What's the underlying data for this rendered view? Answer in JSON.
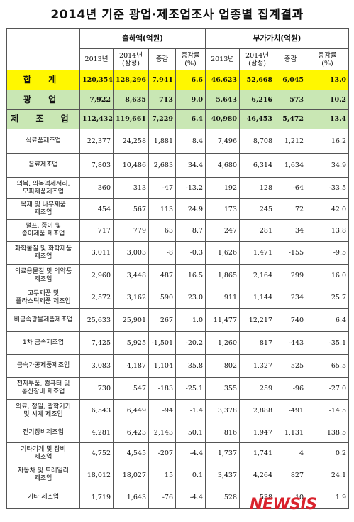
{
  "title": "2014년 기준 광업·제조업조사 업종별 집계결과",
  "headers": {
    "shipments_group": "출하액(억원)",
    "value_added_group": "부가가치(억원)",
    "y2013": "2013년",
    "y2014_line1": "2014년",
    "y2014_line2": "(잠정)",
    "change": "증감",
    "rate_line1": "증감률",
    "rate_line2": "(%)"
  },
  "summary_rows": [
    {
      "name": "합 계",
      "s2013": "120,354",
      "s2014": "128,296",
      "sdiff": "7,941",
      "srate": "6.6",
      "v2013": "46,623",
      "v2014": "52,668",
      "vdiff": "6,045",
      "vrate": "13.0"
    },
    {
      "name": "광 업",
      "s2013": "7,922",
      "s2014": "8,635",
      "sdiff": "713",
      "srate": "9.0",
      "v2013": "5,643",
      "v2014": "6,216",
      "vdiff": "573",
      "vrate": "10.2"
    },
    {
      "name": "제 조 업",
      "s2013": "112,432",
      "s2014": "119,661",
      "sdiff": "7,229",
      "srate": "6.4",
      "v2013": "40,980",
      "v2014": "46,453",
      "vdiff": "5,472",
      "vrate": "13.4"
    }
  ],
  "rows": [
    {
      "name1": "식료품제조업",
      "name2": "",
      "s2013": "22,377",
      "s2014": "24,258",
      "sdiff": "1,881",
      "srate": "8.4",
      "v2013": "7,496",
      "v2014": "8,708",
      "vdiff": "1,212",
      "vrate": "16.2"
    },
    {
      "name1": "음료제조업",
      "name2": "",
      "s2013": "7,803",
      "s2014": "10,486",
      "sdiff": "2,683",
      "srate": "34.4",
      "v2013": "4,680",
      "v2014": "6,314",
      "vdiff": "1,634",
      "vrate": "34.9"
    },
    {
      "name1": "의복, 의복액세서리,",
      "name2": "모피제품제조업",
      "s2013": "360",
      "s2014": "313",
      "sdiff": "-47",
      "srate": "-13.2",
      "v2013": "192",
      "v2014": "128",
      "vdiff": "-64",
      "vrate": "-33.5"
    },
    {
      "name1": "목재 및 나무제품",
      "name2": "제조업",
      "s2013": "454",
      "s2014": "567",
      "sdiff": "113",
      "srate": "24.9",
      "v2013": "173",
      "v2014": "245",
      "vdiff": "72",
      "vrate": "42.0"
    },
    {
      "name1": "펄프, 종이 및",
      "name2": "종이제품 제조업",
      "s2013": "717",
      "s2014": "779",
      "sdiff": "63",
      "srate": "8.7",
      "v2013": "247",
      "v2014": "281",
      "vdiff": "34",
      "vrate": "13.8"
    },
    {
      "name1": "화학물질 및 화학제품",
      "name2": "제조업",
      "s2013": "3,011",
      "s2014": "3,003",
      "sdiff": "-8",
      "srate": "-0.3",
      "v2013": "1,626",
      "v2014": "1,471",
      "vdiff": "-155",
      "vrate": "-9.5"
    },
    {
      "name1": "의료용물질 및 의약품",
      "name2": "제조업",
      "s2013": "2,960",
      "s2014": "3,448",
      "sdiff": "487",
      "srate": "16.5",
      "v2013": "1,865",
      "v2014": "2,164",
      "vdiff": "299",
      "vrate": "16.0"
    },
    {
      "name1": "고무제품 및",
      "name2": "플라스틱제품 제조업",
      "s2013": "2,572",
      "s2014": "3,162",
      "sdiff": "590",
      "srate": "23.0",
      "v2013": "911",
      "v2014": "1,144",
      "vdiff": "234",
      "vrate": "25.7"
    },
    {
      "name1": "비금속광물제품제조업",
      "name2": "",
      "s2013": "25,633",
      "s2014": "25,901",
      "sdiff": "267",
      "srate": "1.0",
      "v2013": "11,477",
      "v2014": "12,217",
      "vdiff": "740",
      "vrate": "6.4"
    },
    {
      "name1": "1차 금속제조업",
      "name2": "",
      "s2013": "7,425",
      "s2014": "5,925",
      "sdiff": "-1,501",
      "srate": "-20.2",
      "v2013": "1,260",
      "v2014": "817",
      "vdiff": "-443",
      "vrate": "-35.1"
    },
    {
      "name1": "금속가공제품제조업",
      "name2": "",
      "s2013": "3,083",
      "s2014": "4,187",
      "sdiff": "1,104",
      "srate": "35.8",
      "v2013": "802",
      "v2014": "1,327",
      "vdiff": "525",
      "vrate": "65.5"
    },
    {
      "name1": "전자부품, 컴퓨터 및",
      "name2": "통신장비 제조업",
      "s2013": "730",
      "s2014": "547",
      "sdiff": "-183",
      "srate": "-25.1",
      "v2013": "355",
      "v2014": "259",
      "vdiff": "-96",
      "vrate": "-27.0"
    },
    {
      "name1": "의료, 정밀, 광학기기",
      "name2": "및 시계 제조업",
      "s2013": "6,543",
      "s2014": "6,449",
      "sdiff": "-94",
      "srate": "-1.4",
      "v2013": "3,378",
      "v2014": "2,888",
      "vdiff": "-491",
      "vrate": "-14.5"
    },
    {
      "name1": "전기장비제조업",
      "name2": "",
      "s2013": "4,281",
      "s2014": "6,423",
      "sdiff": "2,143",
      "srate": "50.1",
      "v2013": "816",
      "v2014": "1,947",
      "vdiff": "1,131",
      "vrate": "138.5"
    },
    {
      "name1": "기타기계 및 장비",
      "name2": "제조업",
      "s2013": "4,752",
      "s2014": "4,545",
      "sdiff": "-207",
      "srate": "-4.4",
      "v2013": "1,737",
      "v2014": "1,741",
      "vdiff": "4",
      "vrate": "0.2"
    },
    {
      "name1": "자동차 및 트레일러",
      "name2": "제조업",
      "s2013": "18,012",
      "s2014": "18,027",
      "sdiff": "15",
      "srate": "0.1",
      "v2013": "3,437",
      "v2014": "4,264",
      "vdiff": "827",
      "vrate": "24.1"
    },
    {
      "name1": "기타 제조업",
      "name2": "",
      "s2013": "1,719",
      "s2014": "1,643",
      "sdiff": "-76",
      "srate": "-4.4",
      "v2013": "528",
      "v2014": "538",
      "vdiff": "10",
      "vrate": "1.9"
    }
  ],
  "watermark": "NEWSIS"
}
